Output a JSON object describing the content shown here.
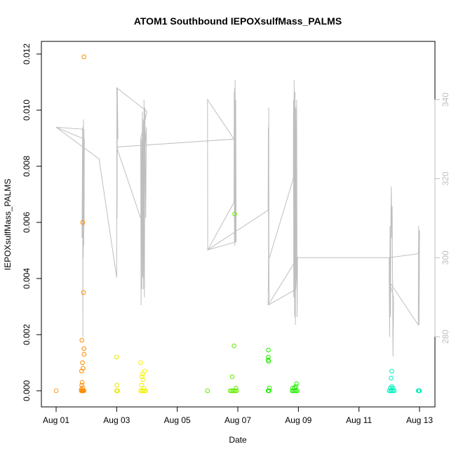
{
  "chart_data": {
    "type": "scatter",
    "title": "ATOM1 Southbound IEPOXsulfMass_PALMS",
    "xlabel": "Date",
    "ylabel": "IEPOXsulfMass_PALMS",
    "xlim": [
      "2016-08-01",
      "2016-08-13"
    ],
    "ylim": [
      0,
      0.012
    ],
    "x_ticks": [
      "Aug 01",
      "Aug 03",
      "Aug 05",
      "Aug 07",
      "Aug 09",
      "Aug 11",
      "Aug 13"
    ],
    "y_ticks": [
      "0.000",
      "0.002",
      "0.004",
      "0.006",
      "0.008",
      "0.010",
      "0.012"
    ],
    "y2_ticks": [
      "280",
      "300",
      "320",
      "340"
    ],
    "y2_range": [
      264,
      345
    ],
    "grid": false,
    "colors": {
      "line": "#bebebe",
      "axis": "#000000",
      "right_axis": "#bebebe"
    },
    "scatter": [
      {
        "x": "2016-08-01T00:00",
        "y": 0.0,
        "color": "#ff9933"
      },
      {
        "x": "2016-08-01T20:00",
        "y": 0.0,
        "color": "#ff8c00"
      },
      {
        "x": "2016-08-01T20:30",
        "y": 0.0,
        "color": "#ff8c00"
      },
      {
        "x": "2016-08-01T21:00",
        "y": 0.0,
        "color": "#ff8c00"
      },
      {
        "x": "2016-08-01T21:30",
        "y": 0.0,
        "color": "#ff8c00"
      },
      {
        "x": "2016-08-01T22:00",
        "y": 0.0,
        "color": "#ff8c00"
      },
      {
        "x": "2016-08-01T20:00",
        "y": 5e-05,
        "color": "#ff8c00"
      },
      {
        "x": "2016-08-01T20:20",
        "y": 0.0002,
        "color": "#ff8c00"
      },
      {
        "x": "2016-08-01T20:40",
        "y": 0.0003,
        "color": "#ff8c00"
      },
      {
        "x": "2016-08-01T21:10",
        "y": 0.0001,
        "color": "#ff8c00"
      },
      {
        "x": "2016-08-01T20:10",
        "y": 0.0007,
        "color": "#ff8c00"
      },
      {
        "x": "2016-08-01T21:20",
        "y": 0.0008,
        "color": "#ff8c00"
      },
      {
        "x": "2016-08-01T20:50",
        "y": 0.001,
        "color": "#ff8c00"
      },
      {
        "x": "2016-08-01T22:10",
        "y": 0.0013,
        "color": "#ff8c00"
      },
      {
        "x": "2016-08-01T22:00",
        "y": 0.0015,
        "color": "#ff8c00"
      },
      {
        "x": "2016-08-01T20:25",
        "y": 0.0018,
        "color": "#ff8c00"
      },
      {
        "x": "2016-08-01T21:40",
        "y": 0.0035,
        "color": "#ff8c00"
      },
      {
        "x": "2016-08-01T21:00",
        "y": 0.006,
        "color": "#ff8c00"
      },
      {
        "x": "2016-08-01T22:00",
        "y": 0.0119,
        "color": "#ff8c00"
      },
      {
        "x": "2016-08-03T00:00",
        "y": 0.0012,
        "color": "#e8e800"
      },
      {
        "x": "2016-08-03T00:10",
        "y": 0.0002,
        "color": "#e8e800"
      },
      {
        "x": "2016-08-03T00:00",
        "y": 0.0,
        "color": "#e8e800"
      },
      {
        "x": "2016-08-03T00:20",
        "y": 0.0,
        "color": "#e8e800"
      },
      {
        "x": "2016-08-03T00:30",
        "y": 0.0,
        "color": "#e8e800"
      },
      {
        "x": "2016-08-03T00:40",
        "y": 0.0,
        "color": "#e8e800"
      },
      {
        "x": "2016-08-03T19:00",
        "y": 0.001,
        "color": "#f2f200"
      },
      {
        "x": "2016-08-03T20:00",
        "y": 0.0005,
        "color": "#f2f200"
      },
      {
        "x": "2016-08-03T20:40",
        "y": 0.0006,
        "color": "#f2f200"
      },
      {
        "x": "2016-08-03T22:00",
        "y": 0.0007,
        "color": "#f2f200"
      },
      {
        "x": "2016-08-03T21:00",
        "y": 0.0004,
        "color": "#f2f200"
      },
      {
        "x": "2016-08-03T19:40",
        "y": 0.0002,
        "color": "#f2f200"
      },
      {
        "x": "2016-08-03T21:30",
        "y": 0.0001,
        "color": "#f2f200"
      },
      {
        "x": "2016-08-03T19:00",
        "y": 0.0,
        "color": "#f2f200"
      },
      {
        "x": "2016-08-03T20:00",
        "y": 0.0,
        "color": "#f2f200"
      },
      {
        "x": "2016-08-03T21:00",
        "y": 0.0,
        "color": "#f2f200"
      },
      {
        "x": "2016-08-03T22:00",
        "y": 0.0,
        "color": "#f2f200"
      },
      {
        "x": "2016-08-03T23:00",
        "y": 0.0,
        "color": "#f2f200"
      },
      {
        "x": "2016-08-06T00:00",
        "y": 0.0,
        "color": "#66ee00"
      },
      {
        "x": "2016-08-06T18:00",
        "y": 0.0,
        "color": "#66ee00"
      },
      {
        "x": "2016-08-06T19:00",
        "y": 0.0,
        "color": "#66ee00"
      },
      {
        "x": "2016-08-06T20:00",
        "y": 0.0,
        "color": "#66ee00"
      },
      {
        "x": "2016-08-06T21:00",
        "y": 0.0,
        "color": "#66ee00"
      },
      {
        "x": "2016-08-06T22:00",
        "y": 0.0,
        "color": "#66ee00"
      },
      {
        "x": "2016-08-06T23:00",
        "y": 0.0,
        "color": "#66ee00"
      },
      {
        "x": "2016-08-06T19:30",
        "y": 0.0005,
        "color": "#66ee00"
      },
      {
        "x": "2016-08-06T21:00",
        "y": 0.0016,
        "color": "#66ee00"
      },
      {
        "x": "2016-08-06T21:30",
        "y": 0.0063,
        "color": "#66ee00"
      },
      {
        "x": "2016-08-06T22:30",
        "y": 0.0001,
        "color": "#66ee00"
      },
      {
        "x": "2016-08-08T00:00",
        "y": 0.0,
        "color": "#22ee00"
      },
      {
        "x": "2016-08-08T00:20",
        "y": 0.0,
        "color": "#22ee00"
      },
      {
        "x": "2016-08-08T00:40",
        "y": 0.0,
        "color": "#22ee00"
      },
      {
        "x": "2016-08-08T01:00",
        "y": 0.0001,
        "color": "#22ee00"
      },
      {
        "x": "2016-08-08T00:00",
        "y": 0.0011,
        "color": "#22ee00"
      },
      {
        "x": "2016-08-08T00:10",
        "y": 0.0012,
        "color": "#22ee00"
      },
      {
        "x": "2016-08-08T00:20",
        "y": 0.00105,
        "color": "#22ee00"
      },
      {
        "x": "2016-08-08T00:15",
        "y": 0.00145,
        "color": "#22ee00"
      },
      {
        "x": "2016-08-08T19:00",
        "y": 0.0,
        "color": "#22ee00"
      },
      {
        "x": "2016-08-08T20:00",
        "y": 0.0,
        "color": "#22ee00"
      },
      {
        "x": "2016-08-08T21:00",
        "y": 0.0,
        "color": "#22ee00"
      },
      {
        "x": "2016-08-08T22:00",
        "y": 0.0,
        "color": "#22ee00"
      },
      {
        "x": "2016-08-08T23:00",
        "y": 0.0,
        "color": "#22ee00"
      },
      {
        "x": "2016-08-08T19:30",
        "y": 0.0001,
        "color": "#22ee00"
      },
      {
        "x": "2016-08-08T21:00",
        "y": 0.0001,
        "color": "#22ee00"
      },
      {
        "x": "2016-08-08T22:30",
        "y": 0.00025,
        "color": "#22ee00"
      },
      {
        "x": "2016-08-08T22:00",
        "y": 0.00015,
        "color": "#22ee00"
      },
      {
        "x": "2016-08-12T00:00",
        "y": 0.0,
        "color": "#00eebb"
      },
      {
        "x": "2016-08-12T01:00",
        "y": 0.0,
        "color": "#00eebb"
      },
      {
        "x": "2016-08-12T02:00",
        "y": 0.0,
        "color": "#00eebb"
      },
      {
        "x": "2016-08-12T03:00",
        "y": 0.0,
        "color": "#00eebb"
      },
      {
        "x": "2016-08-12T04:00",
        "y": 0.0,
        "color": "#00eebb"
      },
      {
        "x": "2016-08-12T01:00",
        "y": 0.0001,
        "color": "#00eebb"
      },
      {
        "x": "2016-08-12T02:00",
        "y": 0.00015,
        "color": "#00eebb"
      },
      {
        "x": "2016-08-12T03:00",
        "y": 0.0001,
        "color": "#00eebb"
      },
      {
        "x": "2016-08-12T01:30",
        "y": 0.00045,
        "color": "#00eebb"
      },
      {
        "x": "2016-08-12T02:00",
        "y": 0.0007,
        "color": "#00eebb"
      },
      {
        "x": "2016-08-12T23:00",
        "y": 0.0,
        "color": "#00eebb"
      },
      {
        "x": "2016-08-12T23:30",
        "y": 0.0,
        "color": "#00eebb"
      },
      {
        "x": "2016-08-13T00:00",
        "y": 0.0,
        "color": "#00eebb"
      }
    ],
    "line": {
      "name": "",
      "axis": "y2",
      "points": [
        [
          "2016-08-01T00:00",
          333
        ],
        [
          "2016-08-01T22:00",
          332.5
        ],
        [
          "2016-08-01T20:30",
          305
        ],
        [
          "2016-08-01T21:00",
          333
        ],
        [
          "2016-08-01T21:10",
          280
        ],
        [
          "2016-08-01T21:20",
          320
        ],
        [
          "2016-08-01T21:30",
          300
        ],
        [
          "2016-08-01T21:40",
          335
        ],
        [
          "2016-08-01T21:50",
          303
        ],
        [
          "2016-08-01T22:00",
          332
        ],
        [
          "2016-08-01T22:10",
          308
        ],
        [
          "2016-08-01T22:20",
          330
        ],
        [
          "2016-08-01T00:00",
          333
        ],
        [
          "2016-08-02T10:00",
          325
        ],
        [
          "2016-08-03T00:00",
          295
        ],
        [
          "2016-08-03T00:10",
          340
        ],
        [
          "2016-08-03T00:20",
          310
        ],
        [
          "2016-08-03T00:30",
          343
        ],
        [
          "2016-08-03T01:00",
          330
        ],
        [
          "2016-08-03T00:00",
          343
        ],
        [
          "2016-08-04T00:00",
          337
        ],
        [
          "2016-08-03T19:00",
          330
        ],
        [
          "2016-08-03T19:20",
          288
        ],
        [
          "2016-08-03T19:40",
          330
        ],
        [
          "2016-08-03T20:00",
          292
        ],
        [
          "2016-08-03T20:20",
          337
        ],
        [
          "2016-08-03T20:40",
          295
        ],
        [
          "2016-08-03T21:00",
          335
        ],
        [
          "2016-08-03T21:20",
          292
        ],
        [
          "2016-08-03T21:40",
          340
        ],
        [
          "2016-08-03T22:00",
          290
        ],
        [
          "2016-08-03T22:20",
          338
        ],
        [
          "2016-08-03T23:00",
          310
        ],
        [
          "2016-08-03T23:30",
          333
        ],
        [
          "2016-08-03T19:00",
          310
        ],
        [
          "2016-08-03T00:00",
          328
        ],
        [
          "2016-08-06T21:00",
          330
        ],
        [
          "2016-08-06T00:00",
          340
        ],
        [
          "2016-08-06T00:10",
          302
        ],
        [
          "2016-08-06T21:00",
          314
        ],
        [
          "2016-08-06T21:10",
          342
        ],
        [
          "2016-08-06T21:20",
          304
        ],
        [
          "2016-08-06T21:30",
          343
        ],
        [
          "2016-08-06T21:40",
          303
        ],
        [
          "2016-08-06T21:50",
          345
        ],
        [
          "2016-08-06T22:00",
          304
        ],
        [
          "2016-08-06T22:20",
          340
        ],
        [
          "2016-08-06T22:40",
          304
        ],
        [
          "2016-08-06T00:10",
          302
        ],
        [
          "2016-08-08T00:00",
          312
        ],
        [
          "2016-08-08T00:10",
          333
        ],
        [
          "2016-08-08T00:20",
          300
        ],
        [
          "2016-08-08T00:30",
          338
        ],
        [
          "2016-08-08T00:40",
          292
        ],
        [
          "2016-08-08T01:00",
          290
        ],
        [
          "2016-08-08T00:00",
          288
        ],
        [
          "2016-08-08T00:20",
          300
        ],
        [
          "2016-08-08T01:00",
          300
        ],
        [
          "2016-08-08T20:00",
          320
        ],
        [
          "2016-08-08T20:10",
          340
        ],
        [
          "2016-08-08T20:20",
          290
        ],
        [
          "2016-08-08T20:40",
          345
        ],
        [
          "2016-08-08T21:00",
          285
        ],
        [
          "2016-08-08T21:20",
          342
        ],
        [
          "2016-08-08T21:40",
          283
        ],
        [
          "2016-08-08T22:00",
          338
        ],
        [
          "2016-08-08T22:20",
          295
        ],
        [
          "2016-08-08T22:40",
          340
        ],
        [
          "2016-08-08T23:00",
          285
        ],
        [
          "2016-08-08T23:20",
          300
        ],
        [
          "2016-08-08T00:00",
          288
        ],
        [
          "2016-08-08T22:00",
          292
        ],
        [
          "2016-08-08T23:00",
          300
        ],
        [
          "2016-08-12T00:00",
          300
        ],
        [
          "2016-08-12T00:00",
          296
        ],
        [
          "2016-08-12T00:20",
          280
        ],
        [
          "2016-08-12T00:40",
          308
        ],
        [
          "2016-08-12T01:00",
          285
        ],
        [
          "2016-08-12T01:20",
          310
        ],
        [
          "2016-08-12T01:40",
          318
        ],
        [
          "2016-08-12T02:00",
          305
        ],
        [
          "2016-08-12T02:20",
          313
        ],
        [
          "2016-08-12T02:40",
          294
        ],
        [
          "2016-08-12T03:00",
          275
        ],
        [
          "2016-08-12T03:30",
          290
        ],
        [
          "2016-08-12T00:00",
          294
        ],
        [
          "2016-08-12T23:00",
          283
        ],
        [
          "2016-08-12T23:20",
          308
        ],
        [
          "2016-08-12T23:40",
          283
        ],
        [
          "2016-08-13T00:00",
          307
        ],
        [
          "2016-08-12T23:00",
          301
        ],
        [
          "2016-08-12T00:00",
          300
        ]
      ]
    }
  }
}
